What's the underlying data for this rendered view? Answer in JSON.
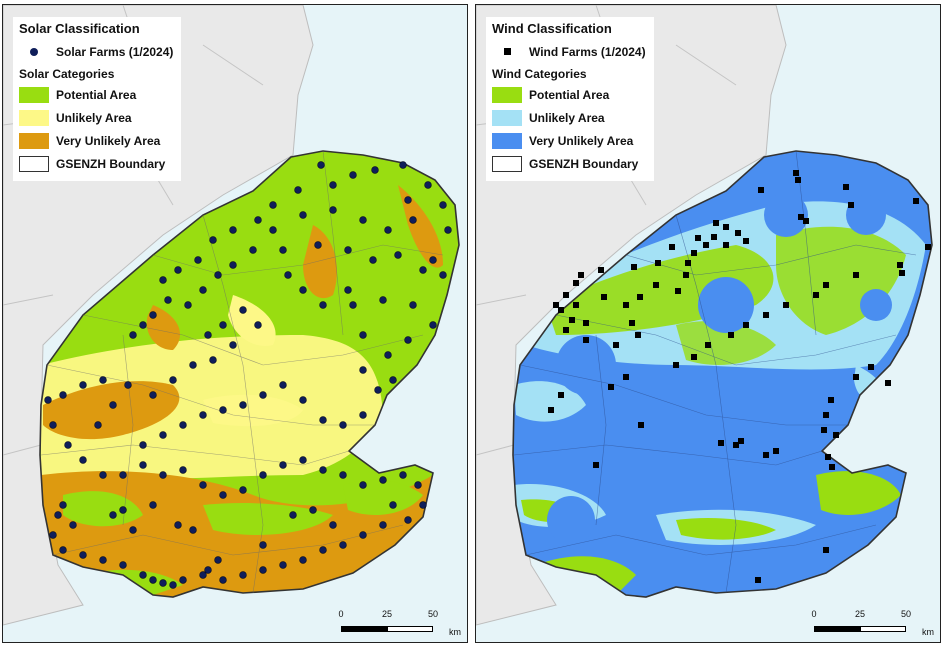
{
  "colors": {
    "sea": "#e6f4f8",
    "land": "#e9e9e9",
    "land_edge": "#bdbdbd",
    "potential": "#99dd11",
    "unlikely_solar": "#fdf887",
    "very_unlikely_solar": "#dd9a10",
    "unlikely_wind": "#a4e1f5",
    "very_unlikely_wind": "#4a8ef0",
    "solar_point": "#0f1e5a",
    "wind_point": "#000000"
  },
  "solar_panel": {
    "title": "Solar Classification",
    "points_label": "Solar Farms (1/2024)",
    "categories_heading": "Solar Categories",
    "categories": [
      {
        "label": "Potential Area",
        "color": "#99dd11"
      },
      {
        "label": "Unlikely Area",
        "color": "#fdf887"
      },
      {
        "label": "Very Unlikely Area",
        "color": "#dd9a10"
      }
    ],
    "boundary_label": "GSENZH Boundary",
    "point_icon": "solar-farm-circle-icon"
  },
  "wind_panel": {
    "title": "Wind Classification",
    "points_label": "Wind Farms (1/2024)",
    "categories_heading": "Wind Categories",
    "categories": [
      {
        "label": "Potential Area",
        "color": "#99dd11"
      },
      {
        "label": "Unlikely Area",
        "color": "#a4e1f5"
      },
      {
        "label": "Very Unlikely Area",
        "color": "#4a8ef0"
      }
    ],
    "boundary_label": "GSENZH Boundary",
    "point_icon": "wind-farm-square-icon"
  },
  "scalebar": {
    "ticks": [
      "0",
      "25",
      "50"
    ],
    "unit": "km"
  }
}
